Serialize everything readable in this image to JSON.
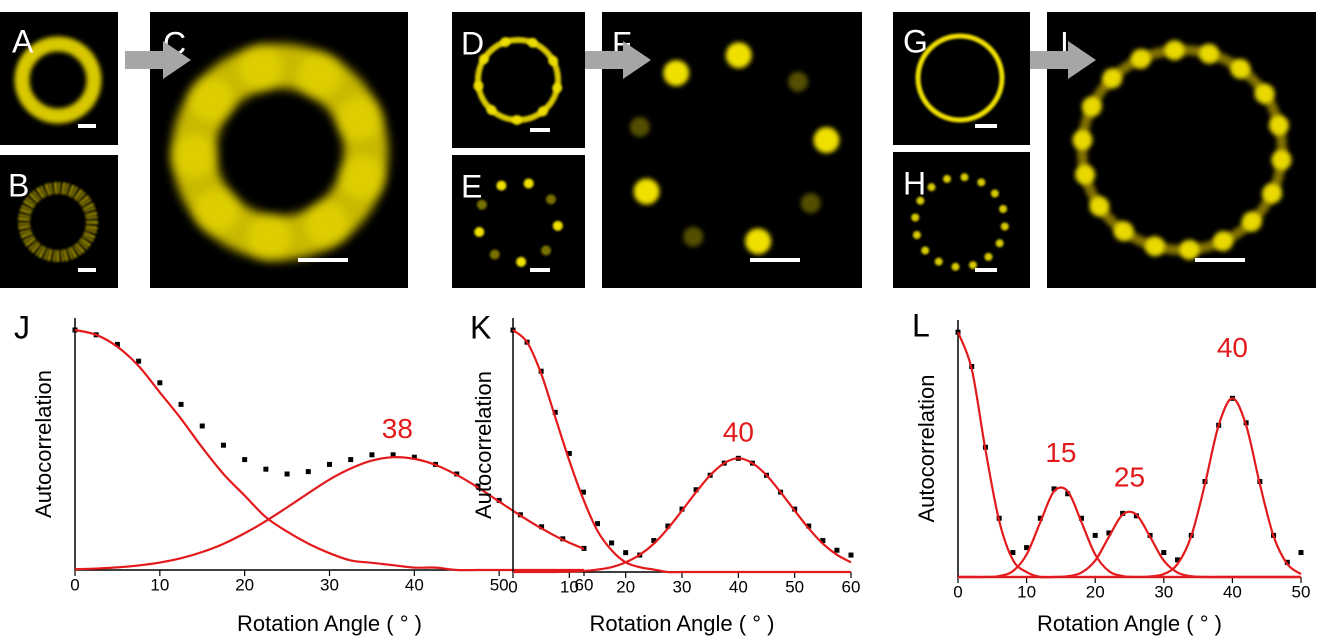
{
  "panels": [
    "A",
    "B",
    "C",
    "D",
    "E",
    "F",
    "G",
    "H",
    "I"
  ],
  "chart_data": [
    {
      "type": "line",
      "label": "J",
      "xlabel": "Rotation Angle ( ° )",
      "ylabel": "Autocorrelation",
      "annotations": [
        "38"
      ],
      "x": [
        0,
        2.5,
        5,
        7.5,
        10,
        12.5,
        15,
        17.5,
        20,
        22.5,
        25,
        27.5,
        30,
        32.5,
        35,
        37.5,
        40,
        42.5,
        45,
        47.5,
        50,
        52.5,
        55,
        57.5,
        60
      ],
      "xlim": [
        0,
        60
      ],
      "xticks": [
        0,
        10,
        20,
        30,
        40,
        50,
        60
      ],
      "ylim": [
        0,
        1.05
      ],
      "series": [
        {
          "color": "#000000",
          "marker": "square",
          "values": [
            1,
            0.98,
            0.94,
            0.87,
            0.78,
            0.69,
            0.6,
            0.52,
            0.46,
            0.42,
            0.4,
            0.41,
            0.44,
            0.46,
            0.48,
            0.48,
            0.47,
            0.44,
            0.4,
            0.35,
            0.29,
            0.23,
            0.18,
            0.13,
            0.09
          ]
        },
        {
          "color": "#e31a1c",
          "values": [
            1,
            0.98,
            0.93,
            0.85,
            0.74,
            0.63,
            0.51,
            0.4,
            0.31,
            0.22,
            0.16,
            0.11,
            0.07,
            0.04,
            0.03,
            0.02,
            0.01,
            0.01,
            0,
            0,
            0,
            0,
            0,
            0,
            0
          ]
        },
        {
          "color": "#e31a1c",
          "values": [
            0.003,
            0.006,
            0.011,
            0.019,
            0.031,
            0.049,
            0.075,
            0.109,
            0.153,
            0.204,
            0.261,
            0.32,
            0.377,
            0.423,
            0.456,
            0.47,
            0.463,
            0.438,
            0.396,
            0.344,
            0.285,
            0.227,
            0.173,
            0.126,
            0.088
          ]
        }
      ]
    },
    {
      "type": "line",
      "label": "K",
      "xlabel": "Rotation Angle ( ° )",
      "ylabel": "Autocorrelation",
      "annotations": [
        "40"
      ],
      "x": [
        0,
        2.5,
        5,
        7.5,
        10,
        12.5,
        15,
        17.5,
        20,
        22.5,
        25,
        27.5,
        30,
        32.5,
        35,
        37.5,
        40,
        42.5,
        45,
        47.5,
        50,
        52.5,
        55,
        57.5,
        60
      ],
      "xlim": [
        0,
        60
      ],
      "xticks": [
        0,
        10,
        20,
        30,
        40,
        50,
        60
      ],
      "ylim": [
        0,
        1.05
      ],
      "series": [
        {
          "color": "#000000",
          "marker": "square",
          "values": [
            1,
            0.95,
            0.83,
            0.66,
            0.49,
            0.33,
            0.2,
            0.12,
            0.08,
            0.07,
            0.13,
            0.19,
            0.26,
            0.34,
            0.4,
            0.45,
            0.47,
            0.45,
            0.4,
            0.33,
            0.26,
            0.19,
            0.13,
            0.09,
            0.07
          ]
        },
        {
          "color": "#e31a1c",
          "values": [
            1,
            0.95,
            0.82,
            0.64,
            0.46,
            0.3,
            0.17,
            0.09,
            0.04,
            0.02,
            0.01,
            0,
            0,
            0,
            0,
            0,
            0,
            0,
            0,
            0,
            0,
            0,
            0,
            0,
            0
          ]
        },
        {
          "color": "#e31a1c",
          "values": [
            0,
            0,
            0,
            0,
            0.002,
            0.004,
            0.01,
            0.02,
            0.04,
            0.071,
            0.117,
            0.18,
            0.254,
            0.33,
            0.4,
            0.45,
            0.47,
            0.45,
            0.4,
            0.33,
            0.254,
            0.18,
            0.117,
            0.071,
            0.04
          ]
        }
      ]
    },
    {
      "type": "line",
      "label": "L",
      "xlabel": "Rotation Angle ( ° )",
      "ylabel": "Autocorrelation",
      "annotations": [
        "15",
        "25",
        "40"
      ],
      "x": [
        0,
        2,
        4,
        6,
        8,
        10,
        12,
        14,
        16,
        18,
        20,
        22,
        24,
        26,
        28,
        30,
        32,
        34,
        36,
        38,
        40,
        42,
        44,
        46,
        48,
        50
      ],
      "xlim": [
        0,
        50
      ],
      "xticks": [
        0,
        10,
        20,
        30,
        40,
        50
      ],
      "ylim": [
        0,
        1.05
      ],
      "series": [
        {
          "color": "#000000",
          "marker": "square",
          "values": [
            1,
            0.86,
            0.53,
            0.24,
            0.1,
            0.12,
            0.24,
            0.36,
            0.34,
            0.24,
            0.17,
            0.18,
            0.26,
            0.25,
            0.17,
            0.1,
            0.07,
            0.17,
            0.39,
            0.62,
            0.73,
            0.63,
            0.39,
            0.17,
            0.06,
            0.1
          ]
        },
        {
          "color": "#e31a1c",
          "values": [
            1,
            0.85,
            0.52,
            0.23,
            0.07,
            0.02,
            0,
            0,
            0,
            0,
            0,
            0,
            0,
            0,
            0,
            0,
            0,
            0,
            0,
            0,
            0,
            0,
            0,
            0,
            0,
            0
          ]
        },
        {
          "color": "#e31a1c",
          "values": [
            0,
            0,
            0,
            0.004,
            0.024,
            0.092,
            0.224,
            0.35,
            0.35,
            0.224,
            0.092,
            0.024,
            0.004,
            0,
            0,
            0,
            0,
            0,
            0,
            0,
            0,
            0,
            0,
            0,
            0,
            0
          ]
        },
        {
          "color": "#e31a1c",
          "values": [
            0,
            0,
            0,
            0,
            0,
            0,
            0,
            0,
            0.003,
            0.018,
            0.067,
            0.164,
            0.255,
            0.255,
            0.164,
            0.067,
            0.018,
            0.003,
            0,
            0,
            0,
            0,
            0,
            0,
            0,
            0
          ]
        },
        {
          "color": "#e31a1c",
          "values": [
            0,
            0,
            0,
            0,
            0,
            0,
            0,
            0,
            0,
            0,
            0,
            0,
            0,
            0,
            0.002,
            0.012,
            0.053,
            0.167,
            0.38,
            0.62,
            0.73,
            0.62,
            0.38,
            0.167,
            0.053,
            0.012
          ]
        }
      ]
    }
  ]
}
